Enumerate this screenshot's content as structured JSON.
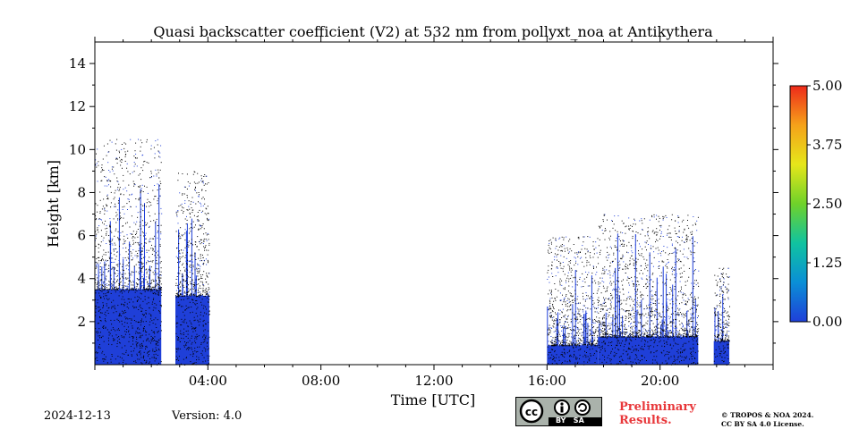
{
  "chart_data": {
    "type": "heatmap",
    "title": "Quasi backscatter coefficient (V2) at 532 nm from pollyxt_noa at Antikythera",
    "xlabel": "Time [UTC]",
    "ylabel": "Height [km]",
    "xlim_hours": [
      0,
      24
    ],
    "ylim_km": [
      0,
      15
    ],
    "x_ticks": [
      {
        "hours": 4,
        "label": "04:00"
      },
      {
        "hours": 8,
        "label": "08:00"
      },
      {
        "hours": 12,
        "label": "12:00"
      },
      {
        "hours": 16,
        "label": "16:00"
      },
      {
        "hours": 20,
        "label": "20:00"
      }
    ],
    "y_ticks": [
      {
        "km": 2,
        "label": "2"
      },
      {
        "km": 4,
        "label": "4"
      },
      {
        "km": 6,
        "label": "6"
      },
      {
        "km": 8,
        "label": "8"
      },
      {
        "km": 10,
        "label": "10"
      },
      {
        "km": 12,
        "label": "12"
      },
      {
        "km": 14,
        "label": "14"
      }
    ],
    "colorbar": {
      "min": 0.0,
      "max": 5.0,
      "ticks": [
        "0.00",
        "1.25",
        "2.50",
        "3.75",
        "5.00"
      ],
      "colormap": [
        "#1f3fd8",
        "#0a8fd6",
        "#10c3a0",
        "#6fd22a",
        "#e6e61a",
        "#f5a21a",
        "#ee2a1a"
      ]
    },
    "data_segments": [
      {
        "start_hours": 0.0,
        "end_hours": 2.35,
        "dense_top_km": 3.5,
        "scatter_top_km": 10.5
      },
      {
        "start_hours": 2.85,
        "end_hours": 4.05,
        "dense_top_km": 3.2,
        "scatter_top_km": 9.0
      },
      {
        "start_hours": 16.0,
        "end_hours": 17.8,
        "dense_top_km": 0.9,
        "scatter_top_km": 6.0
      },
      {
        "start_hours": 17.8,
        "end_hours": 21.35,
        "dense_top_km": 1.3,
        "scatter_top_km": 7.0
      },
      {
        "start_hours": 21.9,
        "end_hours": 22.45,
        "dense_top_km": 1.1,
        "scatter_top_km": 4.5
      }
    ],
    "signal_color": "#1f3fd8",
    "grid": false
  },
  "footer": {
    "date": "2024-12-13",
    "version": "Version: 4.0",
    "preliminary_line1": "Preliminary",
    "preliminary_line2": "Results.",
    "copyright_line1": "© TROPOS & NOA 2024.",
    "copyright_line2": "CC BY SA 4.0 License.",
    "cc_badge_text": "BY   SA"
  }
}
